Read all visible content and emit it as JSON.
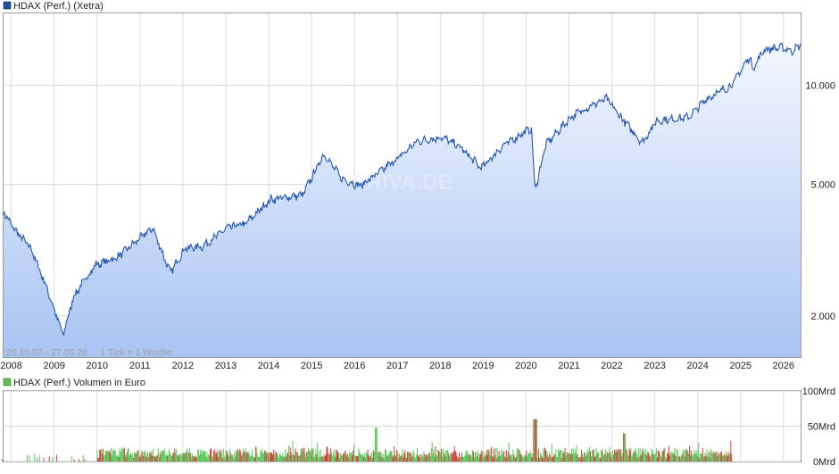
{
  "price_chart": {
    "legend_label": "HDAX (Perf.) (Xetra)",
    "legend_color": "#1f4e9c",
    "date_range": "26.10.07 - 27.05.26",
    "tick_info": "1 Tick = 1 Woche",
    "watermark": "ARIVA.DE",
    "line_color": "#2457b0"
  },
  "volume_chart": {
    "legend_label": "HDAX (Perf.) Volumen in Euro",
    "legend_color": "#5cc14a",
    "up_color": "#5cc85c",
    "down_color": "#d94040"
  },
  "chart_data": [
    {
      "type": "area",
      "title": "HDAX (Perf.) (Xetra)",
      "y_scale": "log",
      "y_ticks": [
        "2.000",
        "5.000",
        "10.000"
      ],
      "y_tick_values": [
        2000,
        5000,
        10000
      ],
      "x_ticks": [
        "2008",
        "2009",
        "2010",
        "2011",
        "2012",
        "2013",
        "2014",
        "2015",
        "2016",
        "2017",
        "2018",
        "2019",
        "2020",
        "2021",
        "2022",
        "2023",
        "2024",
        "2025",
        "2026"
      ],
      "x": [
        "2007-10",
        "2008-01",
        "2008-06",
        "2008-10",
        "2009-03",
        "2009-06",
        "2009-12",
        "2010-06",
        "2011-04",
        "2011-09",
        "2012-01",
        "2012-06",
        "2013-01",
        "2013-06",
        "2014-01",
        "2014-10",
        "2015-04",
        "2015-09",
        "2016-02",
        "2016-07",
        "2017-01",
        "2017-06",
        "2018-01",
        "2018-06",
        "2018-12",
        "2019-06",
        "2019-12",
        "2020-02",
        "2020-03",
        "2020-06",
        "2021-01",
        "2021-06",
        "2021-11",
        "2022-03",
        "2022-09",
        "2023-01",
        "2023-10",
        "2024-03",
        "2024-10",
        "2025-03",
        "2025-04",
        "2025-07",
        "2025-12",
        "2026-03",
        "2026-05"
      ],
      "y": [
        4200,
        3700,
        3200,
        2500,
        1750,
        2300,
        2850,
        3000,
        3700,
        2700,
        3200,
        3250,
        3700,
        3800,
        4500,
        4650,
        6200,
        5200,
        4950,
        5400,
        6050,
        6750,
        6950,
        6500,
        5600,
        6550,
        7200,
        7400,
        4800,
        6600,
        8000,
        8600,
        9100,
        8000,
        6700,
        7800,
        8000,
        9100,
        10000,
        12200,
        11200,
        12800,
        13000,
        12700,
        13200
      ],
      "ylim": [
        1500,
        16500
      ]
    },
    {
      "type": "bar",
      "title": "HDAX (Perf.) Volumen in Euro",
      "y_ticks": [
        "0Mrd",
        "50Mrd",
        "100Mrd"
      ],
      "y_tick_values": [
        0,
        50,
        100
      ],
      "unit": "Mrd",
      "period": [
        "2007-10",
        "2024-10"
      ],
      "typical_range": [
        5,
        25
      ],
      "peak": {
        "date": "2020-03",
        "value": 60
      },
      "ylim": [
        0,
        100
      ]
    }
  ]
}
